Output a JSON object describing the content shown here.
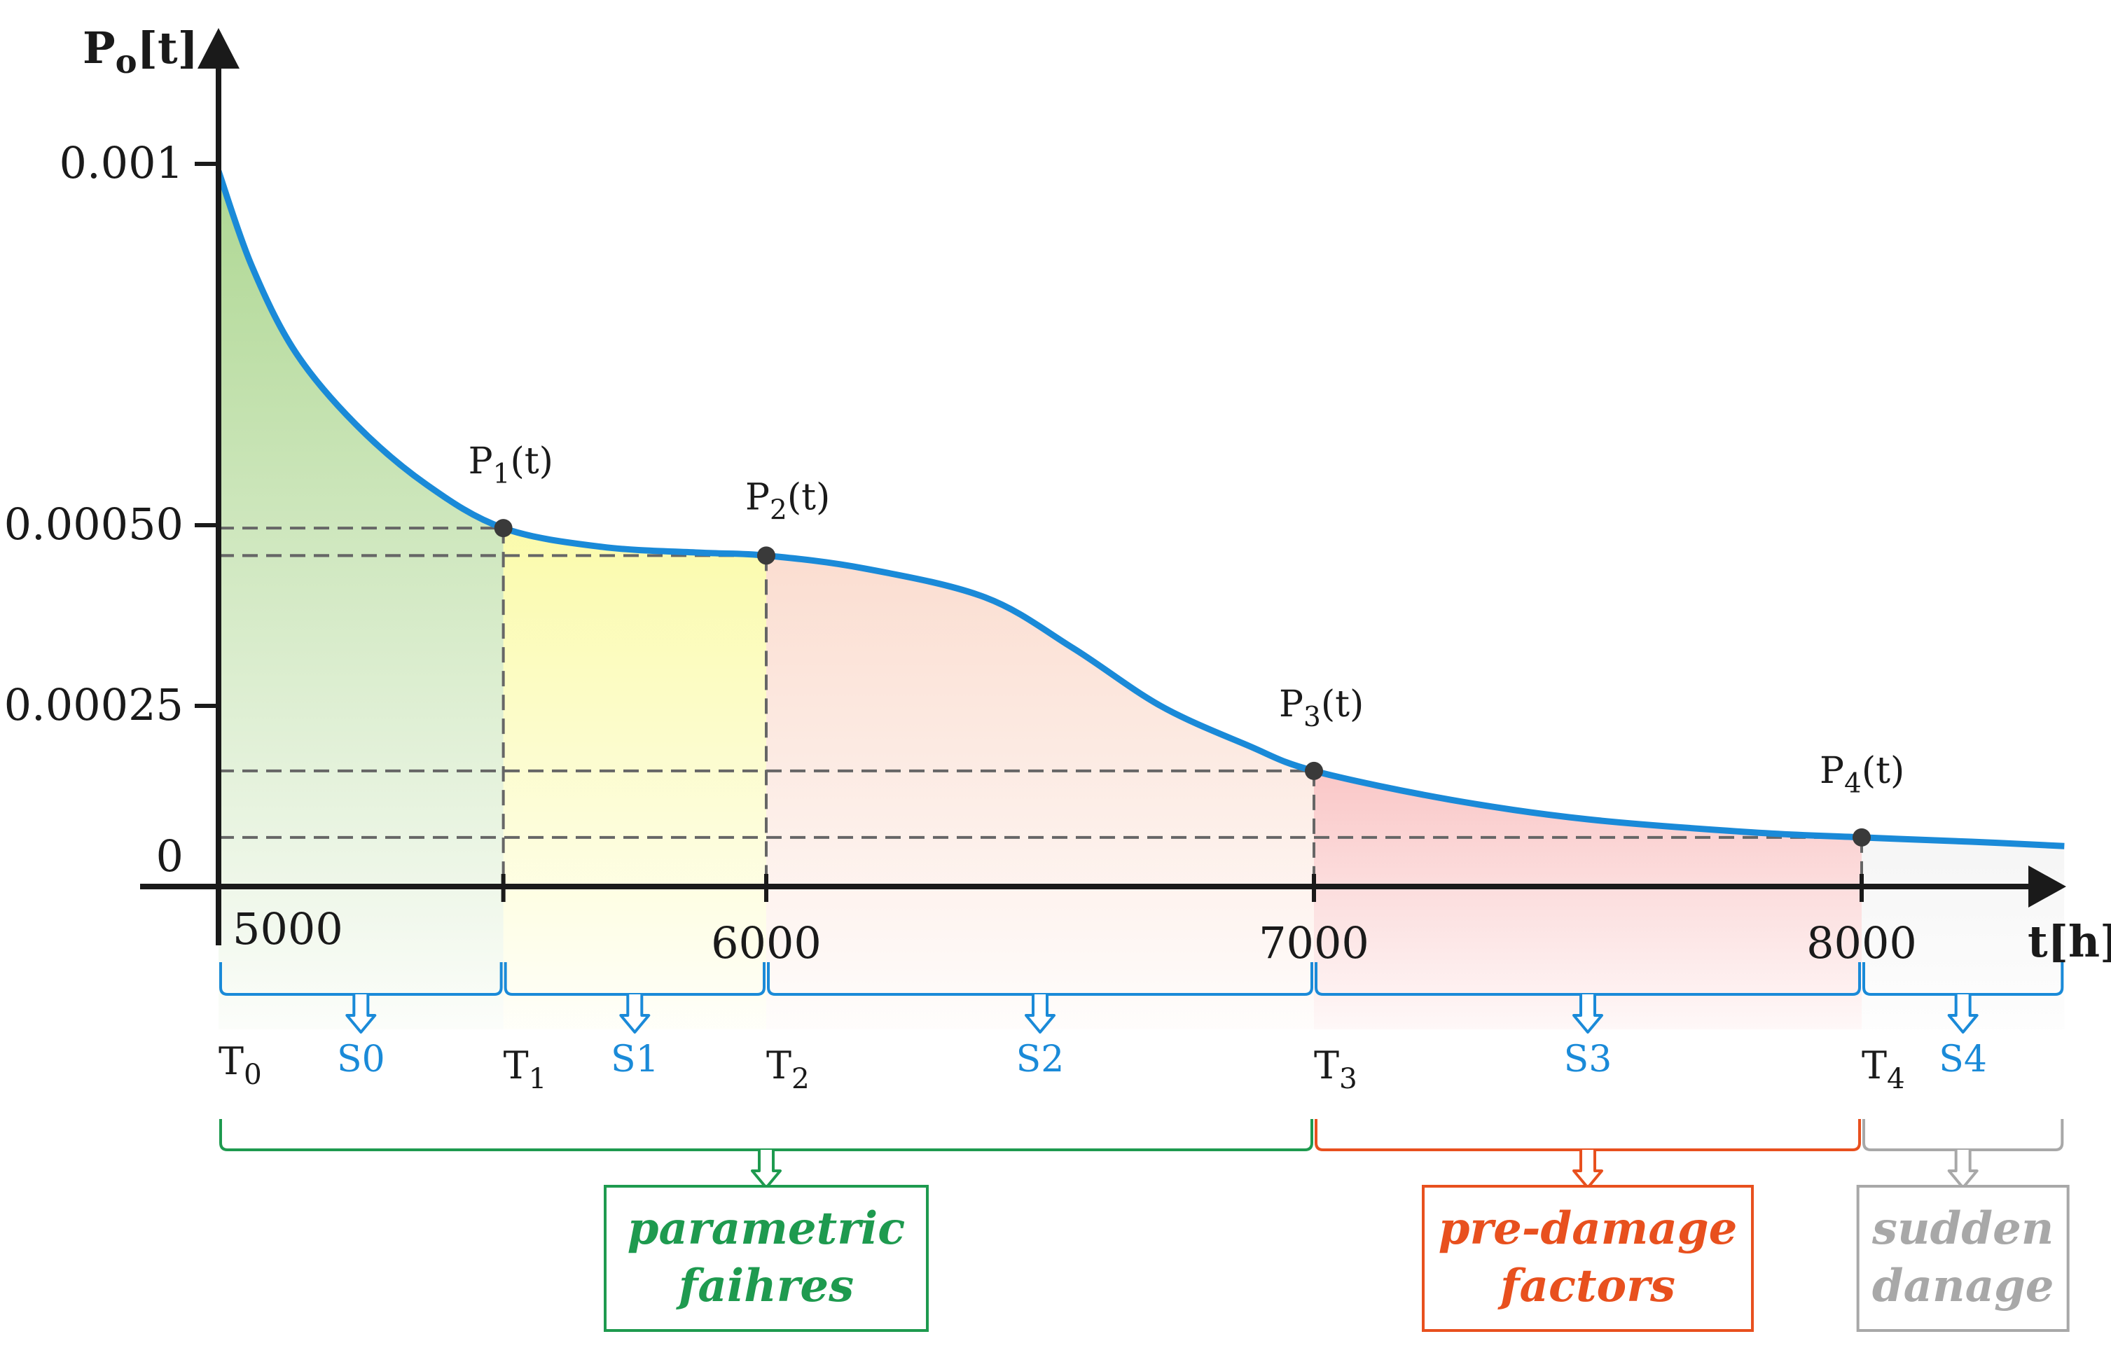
{
  "chart_data": {
    "type": "area",
    "ylabel": {
      "main": "P",
      "sub": "o",
      "rest": "[t]"
    },
    "xlabel": "t[h]",
    "y_ticks": [
      {
        "value": 0.001,
        "label": "0.001"
      },
      {
        "value": 0.0005,
        "label": "0.00050"
      },
      {
        "value": 0.00025,
        "label": "0.00025"
      },
      {
        "value": 0,
        "label": "0"
      }
    ],
    "x_ticks": [
      {
        "value": 5000,
        "label": "5000"
      },
      {
        "value": 6000,
        "label": "6000"
      },
      {
        "value": 7000,
        "label": "7000"
      },
      {
        "value": 8000,
        "label": "8000"
      }
    ],
    "curve": [
      {
        "t": 5000,
        "p": 0.00099
      },
      {
        "t": 5060,
        "p": 0.00086
      },
      {
        "t": 5140,
        "p": 0.00074
      },
      {
        "t": 5250,
        "p": 0.00064
      },
      {
        "t": 5380,
        "p": 0.000556
      },
      {
        "t": 5520,
        "p": 0.000496
      },
      {
        "t": 5700,
        "p": 0.00047
      },
      {
        "t": 5880,
        "p": 0.000462
      },
      {
        "t": 6000,
        "p": 0.000458
      },
      {
        "t": 6180,
        "p": 0.00044
      },
      {
        "t": 6400,
        "p": 0.0004
      },
      {
        "t": 6560,
        "p": 0.00033
      },
      {
        "t": 6720,
        "p": 0.00025
      },
      {
        "t": 6880,
        "p": 0.000195
      },
      {
        "t": 7000,
        "p": 0.00016
      },
      {
        "t": 7250,
        "p": 0.00012
      },
      {
        "t": 7500,
        "p": 9.3e-05
      },
      {
        "t": 7800,
        "p": 7.5e-05
      },
      {
        "t": 8000,
        "p": 6.8e-05
      },
      {
        "t": 8200,
        "p": 6.2e-05
      },
      {
        "t": 8370,
        "p": 5.6e-05
      }
    ],
    "points": [
      {
        "name": "P",
        "sub": "1",
        "rest": "(t)",
        "t": 5520,
        "p": 0.000496
      },
      {
        "name": "P",
        "sub": "2",
        "rest": "(t)",
        "t": 6000,
        "p": 0.000458
      },
      {
        "name": "P",
        "sub": "3",
        "rest": "(t)",
        "t": 7000,
        "p": 0.00016
      },
      {
        "name": "P",
        "sub": "4",
        "rest": "(t)",
        "t": 8000,
        "p": 6.8e-05
      }
    ],
    "boundaries": [
      {
        "name": "T",
        "sub": "0",
        "t": 5000
      },
      {
        "name": "T",
        "sub": "1",
        "t": 5520
      },
      {
        "name": "T",
        "sub": "2",
        "t": 6000
      },
      {
        "name": "T",
        "sub": "3",
        "t": 7000
      },
      {
        "name": "T",
        "sub": "4",
        "t": 8000
      }
    ],
    "segments": [
      {
        "label": "S0",
        "from": 5000,
        "to": 5520,
        "color": "#a8d48a"
      },
      {
        "label": "S1",
        "from": 5520,
        "to": 6000,
        "color": "#f7f76a"
      },
      {
        "label": "S2",
        "from": 6000,
        "to": 7000,
        "color": "#f7c0a8"
      },
      {
        "label": "S3",
        "from": 7000,
        "to": 8000,
        "color": "#ee4a4a"
      },
      {
        "label": "S4",
        "from": 8000,
        "to": 8370,
        "color": "#d6d6d6"
      }
    ],
    "categories": [
      {
        "lines": [
          "parametric",
          "faihres"
        ],
        "from": 5000,
        "to": 7000,
        "color": "#1e9a4f"
      },
      {
        "lines": [
          "pre-damage",
          "factors"
        ],
        "from": 7000,
        "to": 8000,
        "color": "#e8501e"
      },
      {
        "lines": [
          "sudden",
          "danage"
        ],
        "from": 8000,
        "to": 8370,
        "color": "#a8a8a8"
      }
    ],
    "colors": {
      "curve": "#1a8ad8",
      "axis": "#1a1a1a",
      "segment_brace": "#1a8ad8",
      "dashed": "#666666"
    }
  }
}
